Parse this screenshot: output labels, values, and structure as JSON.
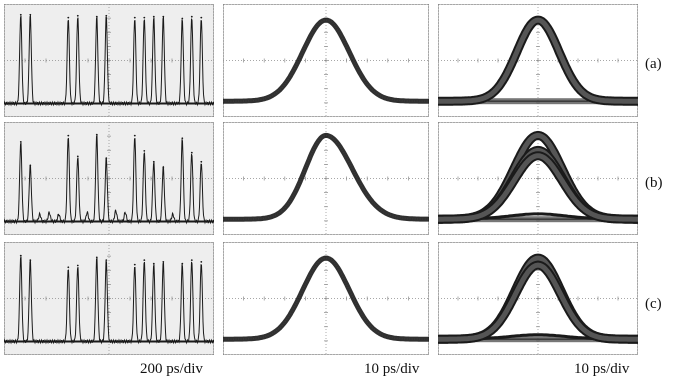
{
  "row_labels": [
    "(a)",
    "(b)",
    "(c)"
  ],
  "column_labels": [
    "200 ps/div",
    "10 ps/div",
    "10 ps/div"
  ],
  "colors": {
    "trace": "#1a1a1a",
    "eye_shade": "#555555",
    "grid": "#8a8a8a",
    "panel_bg_shaded": "#eeeeee",
    "panel_bg": "#ffffff"
  },
  "chart_data": [
    {
      "type": "line",
      "row": "(a)",
      "column": "pulse train",
      "time_scale": "200 ps/div",
      "pulses": [
        1,
        1,
        0,
        0,
        0,
        1,
        1,
        0,
        1,
        1,
        0,
        0,
        1,
        1,
        1,
        1,
        0,
        1,
        1,
        1
      ],
      "amplitudes": [
        0.98,
        0.98,
        0,
        0,
        0,
        0.95,
        0.97,
        0,
        0.96,
        0.97,
        0,
        0,
        0.95,
        0.95,
        0.96,
        0.96,
        0,
        0.94,
        0.96,
        0.95
      ]
    },
    {
      "type": "line",
      "row": "(a)",
      "column": "single pulse",
      "time_scale": "10 ps/div",
      "peak": 0.92,
      "width": 0.16,
      "skew": 0
    },
    {
      "type": "line",
      "row": "(a)",
      "column": "eye diagram",
      "time_scale": "10 ps/div",
      "levels": [
        0.92
      ],
      "width": 0.15
    },
    {
      "type": "line",
      "row": "(b)",
      "column": "pulse train",
      "time_scale": "200 ps/div",
      "pulses": [
        1,
        1,
        0,
        0,
        0,
        1,
        1,
        0,
        1,
        1,
        0,
        0,
        1,
        1,
        1,
        1,
        0,
        1,
        1,
        1
      ],
      "amplitudes": [
        0.88,
        0.62,
        0.08,
        0.1,
        0.08,
        0.95,
        0.72,
        0.1,
        0.96,
        0.7,
        0.12,
        0.1,
        0.95,
        0.78,
        0.66,
        0.6,
        0.08,
        0.92,
        0.76,
        0.66
      ]
    },
    {
      "type": "line",
      "row": "(b)",
      "column": "single pulse",
      "time_scale": "10 ps/div",
      "peak": 0.95,
      "width": 0.16,
      "skew": 0.3
    },
    {
      "type": "line",
      "row": "(b)",
      "column": "eye diagram",
      "time_scale": "10 ps/div",
      "levels": [
        0.95,
        0.78,
        0.72
      ],
      "width": 0.17,
      "floor_bump": 0.06
    },
    {
      "type": "line",
      "row": "(c)",
      "column": "pulse train",
      "time_scale": "200 ps/div",
      "pulses": [
        1,
        1,
        0,
        0,
        0,
        1,
        1,
        0,
        1,
        1,
        0,
        0,
        1,
        1,
        1,
        1,
        0,
        1,
        1,
        1
      ],
      "amplitudes": [
        0.95,
        0.9,
        0,
        0,
        0,
        0.82,
        0.84,
        0,
        0.93,
        0.9,
        0,
        0,
        0.85,
        0.9,
        0.86,
        0.88,
        0,
        0.86,
        0.9,
        0.88
      ]
    },
    {
      "type": "line",
      "row": "(c)",
      "column": "single pulse",
      "time_scale": "10 ps/div",
      "peak": 0.92,
      "width": 0.16,
      "skew": 0
    },
    {
      "type": "line",
      "row": "(c)",
      "column": "eye diagram",
      "time_scale": "10 ps/div",
      "levels": [
        0.92,
        0.84
      ],
      "width": 0.16,
      "floor_bump": 0.05
    }
  ]
}
